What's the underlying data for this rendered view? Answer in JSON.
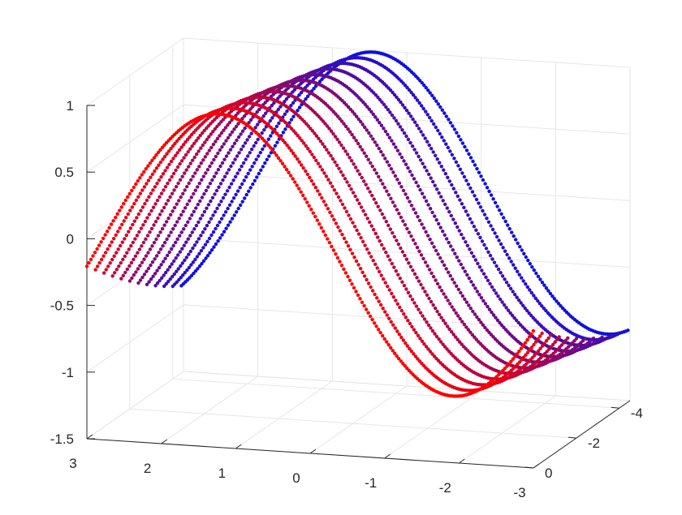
{
  "chart_data": {
    "type": "scatter",
    "plot_kind": "3d-scatter",
    "title": "",
    "xlabel": "",
    "ylabel": "",
    "zlabel": "",
    "grid": true,
    "box": false,
    "colormap": {
      "start": "#1010e0",
      "end": "#ff0000"
    },
    "xlim": [
      -3,
      3
    ],
    "ylim": [
      -4.5,
      0
    ],
    "zlim": [
      -1.5,
      1
    ],
    "x_ticks": [
      "3",
      "2",
      "1",
      "0",
      "-1",
      "-2",
      "-3"
    ],
    "y_ticks": [
      "0",
      "-2",
      "-4"
    ],
    "z_ticks": [
      "1",
      "0.5",
      "0",
      "-0.5",
      "-1",
      "-1.5"
    ],
    "curve": {
      "function": "z = sin(x + phase)",
      "x_range": [
        -3,
        3
      ],
      "y_values": [
        -4.4,
        -4.0,
        -3.6,
        -3.2,
        -2.8,
        -2.4,
        -2.0,
        -1.6,
        -1.2,
        -0.8,
        -0.4,
        0.0
      ],
      "phase_at_y_min": 1.15,
      "phase_at_y_max": 0.35,
      "points_per_curve": 220
    }
  }
}
